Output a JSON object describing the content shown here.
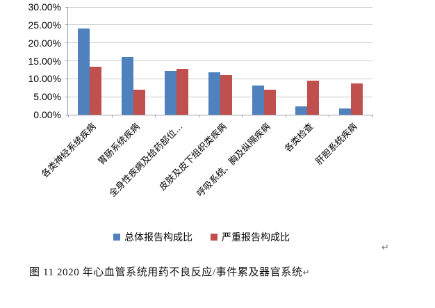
{
  "chart_data": {
    "type": "bar",
    "title": "",
    "categories": [
      "各类神经系统疾病",
      "胃肠系统疾病",
      "全身性疾病及给药部位…",
      "皮肤及皮下组织类疾病",
      "呼吸系统、胸及纵隔疾病",
      "各类检查",
      "肝胆系统疾病"
    ],
    "series": [
      {
        "name": "总体报告构成比",
        "color": "#4F81BD",
        "values": [
          24.0,
          16.0,
          12.1,
          11.9,
          8.2,
          2.3,
          1.7
        ]
      },
      {
        "name": "严重报告构成比",
        "color": "#C0504D",
        "values": [
          13.3,
          7.0,
          12.8,
          11.1,
          7.0,
          9.4,
          8.7
        ]
      }
    ],
    "xlabel": "",
    "ylabel": "",
    "ylim": [
      0,
      30
    ],
    "ytick_step": 5,
    "ytick_labels": [
      "0.00%",
      "5.00%",
      "10.00%",
      "15.00%",
      "20.00%",
      "25.00%",
      "30.00%"
    ],
    "grid": true,
    "legend_position": "bottom"
  },
  "caption": {
    "text": "图 11  2020 年心血管系统用药不良反应/事件累及器官系统"
  },
  "marks": {
    "return_mark": "↵"
  }
}
